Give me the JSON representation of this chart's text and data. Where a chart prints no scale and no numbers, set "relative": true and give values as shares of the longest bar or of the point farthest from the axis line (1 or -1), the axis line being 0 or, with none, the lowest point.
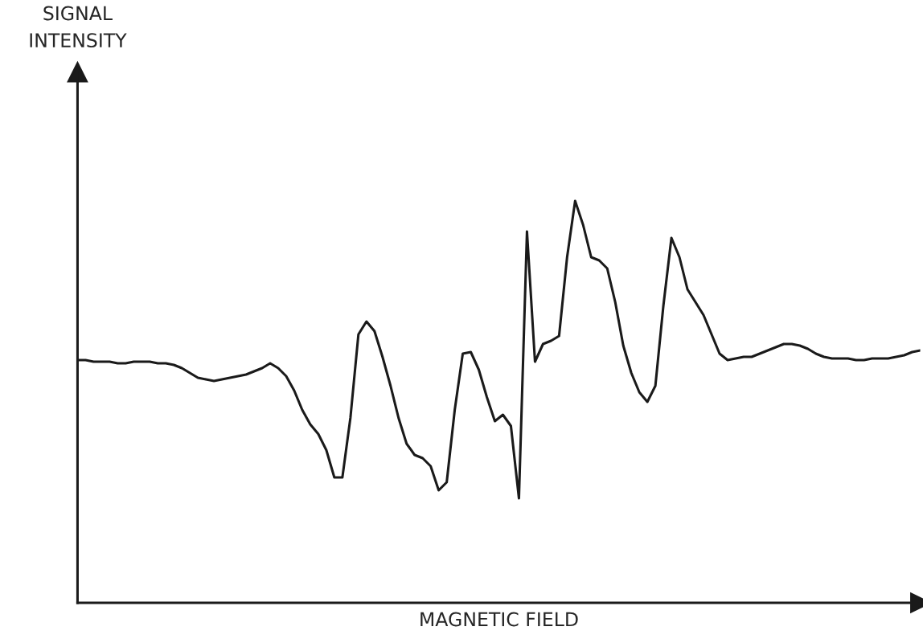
{
  "chart_data": {
    "type": "line",
    "relative": true,
    "xlabel": "MAGNETIC FIELD",
    "annotations": [
      "SIGNAL\nINTENSITY"
    ],
    "legend": false,
    "marker": "none",
    "line_style": "solid",
    "categories": [
      null,
      null,
      null,
      null,
      null,
      null,
      null,
      null,
      null,
      null,
      null,
      null,
      null,
      null,
      null,
      null,
      null,
      null,
      null,
      null,
      null,
      null,
      null,
      null,
      null,
      null,
      null,
      null,
      null,
      null,
      null,
      null,
      null,
      null,
      null,
      null,
      null,
      null,
      null,
      null,
      null,
      null,
      null,
      null,
      null,
      null,
      null,
      null,
      null,
      null,
      null,
      null,
      null,
      null,
      null,
      null,
      null,
      null,
      null,
      null,
      null,
      null,
      null,
      null,
      null,
      null,
      null,
      null,
      null,
      null,
      null,
      null,
      null,
      null,
      null,
      null,
      null,
      null,
      null,
      null,
      null,
      null,
      null,
      null,
      null,
      null,
      null,
      null,
      null,
      null,
      null,
      null,
      null,
      null,
      null,
      null,
      null,
      null,
      null,
      null,
      null,
      null,
      null,
      null,
      null,
      null
    ],
    "series": [
      {
        "color": "#1a1a1a",
        "values": [
          0.604,
          0.604,
          0.6,
          0.6,
          0.6,
          0.596,
          0.596,
          0.6,
          0.6,
          0.6,
          0.596,
          0.596,
          0.592,
          0.584,
          0.572,
          0.56,
          0.556,
          0.552,
          0.556,
          0.56,
          0.564,
          0.568,
          0.576,
          0.584,
          0.596,
          0.584,
          0.564,
          0.528,
          0.48,
          0.444,
          0.42,
          0.38,
          0.312,
          0.312,
          0.46,
          0.668,
          0.7,
          0.676,
          0.612,
          0.54,
          0.46,
          0.396,
          0.368,
          0.36,
          0.34,
          0.28,
          0.3,
          0.48,
          0.62,
          0.624,
          0.58,
          0.512,
          0.452,
          0.468,
          0.44,
          0.26,
          0.924,
          0.6,
          0.644,
          0.652,
          0.664,
          0.86,
          1.0,
          0.94,
          0.86,
          0.852,
          0.832,
          0.748,
          0.64,
          0.572,
          0.524,
          0.5,
          0.54,
          0.74,
          0.908,
          0.86,
          0.78,
          0.748,
          0.716,
          0.668,
          0.62,
          0.604,
          0.608,
          0.612,
          0.612,
          0.62,
          0.628,
          0.636,
          0.644,
          0.644,
          0.64,
          0.632,
          0.62,
          0.612,
          0.608,
          0.608,
          0.608,
          0.604,
          0.604,
          0.608,
          0.608,
          0.608,
          0.612,
          0.616,
          0.624,
          0.628
        ]
      }
    ]
  }
}
